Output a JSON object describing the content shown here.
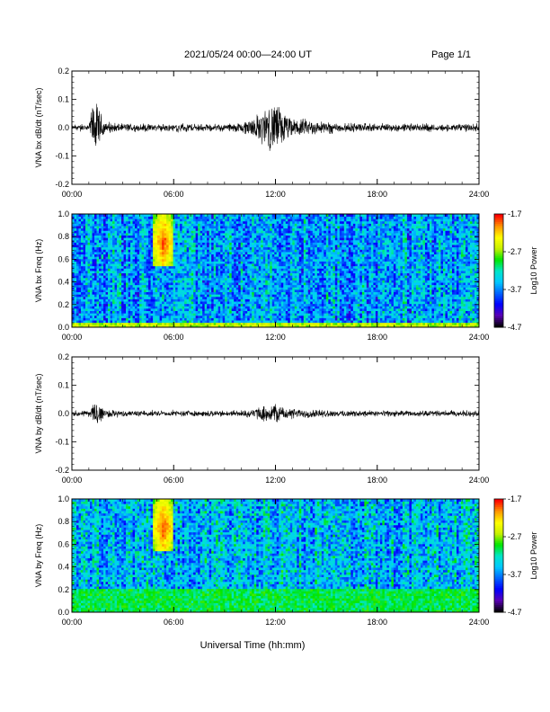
{
  "header": {
    "title": "2021/05/24  00:00—24:00 UT",
    "page": "Page 1/1"
  },
  "xaxis": {
    "label": "Universal Time (hh:mm)",
    "range_hours": [
      0,
      24
    ],
    "tick_labels": [
      "00:00",
      "06:00",
      "12:00",
      "18:00",
      "24:00"
    ]
  },
  "colors": {
    "trace": "#000000",
    "colormap": [
      "#000000",
      "#5a00b4",
      "#0000ff",
      "#0064ff",
      "#00c8ff",
      "#00e6c8",
      "#00e600",
      "#c8f000",
      "#ffff00",
      "#ff9600",
      "#ff0000"
    ]
  },
  "chart_data": [
    {
      "type": "line",
      "ylabel": "VNA bx dB/dt (nT/sec)",
      "ylim": [
        -0.2,
        0.2
      ],
      "yticks": [
        -0.2,
        -0.1,
        0.0,
        0.1,
        0.2
      ],
      "ytick_labels": [
        "-0.2",
        "-0.1",
        "0.0",
        "0.1",
        "0.2"
      ],
      "x_hours": [
        0,
        1,
        1.2,
        1.5,
        1.8,
        2,
        3,
        6,
        9,
        10,
        11,
        11.5,
        12,
        12.5,
        13,
        14,
        15,
        18,
        21,
        24
      ],
      "envelope": [
        0.01,
        0.012,
        0.09,
        0.09,
        0.04,
        0.02,
        0.012,
        0.012,
        0.012,
        0.02,
        0.05,
        0.08,
        0.1,
        0.06,
        0.035,
        0.03,
        0.02,
        0.012,
        0.012,
        0.012
      ],
      "noise_floor": 0.006
    },
    {
      "type": "heatmap",
      "ylabel": "VNA bx Freq (Hz)",
      "ylim": [
        0.0,
        1.0
      ],
      "yticks": [
        0.0,
        0.2,
        0.4,
        0.6,
        0.8,
        1.0
      ],
      "ytick_labels": [
        "0.0",
        "0.2",
        "0.4",
        "0.6",
        "0.8",
        "1.0"
      ],
      "colorbar": {
        "label": "Log10 Power",
        "range": [
          -4.7,
          -1.7
        ],
        "tick_labels": [
          "-1.7",
          "-2.7",
          "-3.7",
          "-4.7"
        ],
        "tick_values": [
          -1.7,
          -2.7,
          -3.7,
          -4.7
        ]
      },
      "background_level": -3.6,
      "low_freq_band": {
        "freq_max": 0.05,
        "level": -2.6
      },
      "emission": {
        "time_hours": [
          4.8,
          6.0
        ],
        "freq": [
          0.55,
          1.0
        ],
        "peak_level": -1.8
      }
    },
    {
      "type": "line",
      "ylabel": "VNA by dB/dt (nT/sec)",
      "ylim": [
        -0.2,
        0.2
      ],
      "yticks": [
        -0.2,
        -0.1,
        0.0,
        0.1,
        0.2
      ],
      "ytick_labels": [
        "-0.2",
        "-0.1",
        "0.0",
        "0.1",
        "0.2"
      ],
      "x_hours": [
        0,
        1,
        1.3,
        1.6,
        2,
        3,
        6,
        9,
        10,
        11,
        11.5,
        12,
        12.5,
        13,
        14,
        15,
        18,
        21,
        24
      ],
      "envelope": [
        0.008,
        0.01,
        0.05,
        0.05,
        0.015,
        0.009,
        0.009,
        0.009,
        0.012,
        0.02,
        0.03,
        0.04,
        0.025,
        0.018,
        0.014,
        0.012,
        0.009,
        0.009,
        0.009
      ],
      "noise_floor": 0.005
    },
    {
      "type": "heatmap",
      "ylabel": "VNA by Freq (Hz)",
      "ylim": [
        0.0,
        1.0
      ],
      "yticks": [
        0.0,
        0.2,
        0.4,
        0.6,
        0.8,
        1.0
      ],
      "ytick_labels": [
        "0.0",
        "0.2",
        "0.4",
        "0.6",
        "0.8",
        "1.0"
      ],
      "colorbar": {
        "label": "Log10 Power",
        "range": [
          -4.7,
          -1.7
        ],
        "tick_labels": [
          "-1.7",
          "-2.7",
          "-3.7",
          "-4.7"
        ],
        "tick_values": [
          -1.7,
          -2.7,
          -3.7,
          -4.7
        ]
      },
      "background_level": -3.5,
      "low_freq_band": {
        "freq_max": 0.2,
        "level": -3.0
      },
      "emission": {
        "time_hours": [
          4.8,
          6.0
        ],
        "freq": [
          0.55,
          1.0
        ],
        "peak_level": -1.8
      }
    }
  ]
}
